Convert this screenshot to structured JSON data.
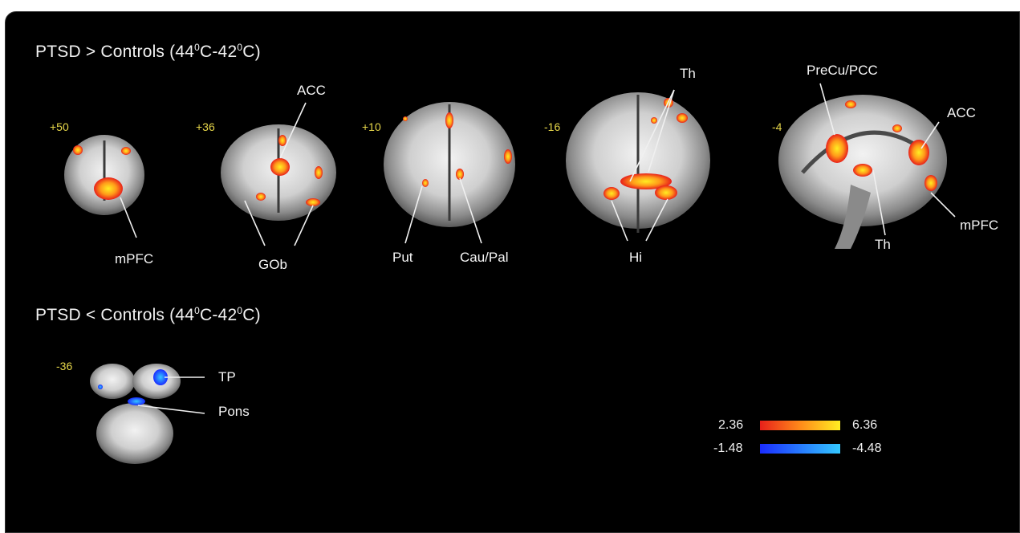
{
  "titles": {
    "top": {
      "prefix": "PTSD > Controls (44",
      "sup1": "0",
      "mid": "C-42",
      "sup2": "0",
      "suffix": "C)"
    },
    "bottom": {
      "prefix": "PTSD < Controls (44",
      "sup1": "0",
      "mid": "C-42",
      "sup2": "0",
      "suffix": "C)"
    }
  },
  "slices": [
    "+50",
    "+36",
    "+10",
    "-16",
    "-4",
    "-36"
  ],
  "labels": {
    "mpfc1": "mPFC",
    "acc1": "ACC",
    "gob": "GOb",
    "put": "Put",
    "caupal": "Cau/Pal",
    "th1": "Th",
    "hi": "Hi",
    "precu": "PreCu/PCC",
    "acc2": "ACC",
    "th2": "Th",
    "mpfc2": "mPFC",
    "tp": "TP",
    "pons": "Pons"
  },
  "colorbar": {
    "pos": {
      "min": "2.36",
      "max": "6.36",
      "from": "#e8201a",
      "to": "#ffee22"
    },
    "neg": {
      "min": "-1.48",
      "max": "-4.48",
      "from": "#1a2cff",
      "to": "#34c8ff"
    }
  }
}
